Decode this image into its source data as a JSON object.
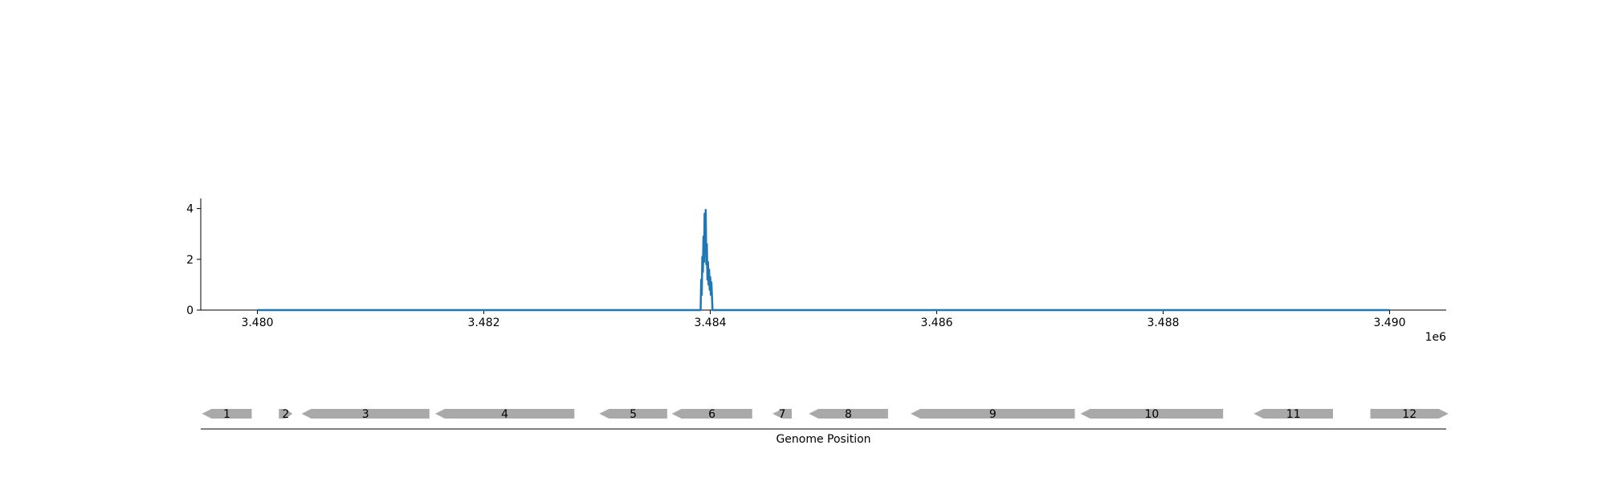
{
  "chart_data": {
    "type": "line",
    "x_scale_label": "1e6",
    "xlim": [
      3.4795,
      3.4905
    ],
    "ylim": [
      0,
      4.4
    ],
    "x_ticks": [
      3.48,
      3.482,
      3.484,
      3.486,
      3.488,
      3.49
    ],
    "x_tick_labels": [
      "3.480",
      "3.482",
      "3.484",
      "3.486",
      "3.488",
      "3.490"
    ],
    "y_ticks": [
      0,
      2,
      4
    ],
    "y_tick_labels": [
      "0",
      "2",
      "4"
    ],
    "grid": false,
    "series": [
      {
        "color": "#1f77b4",
        "x": [
          3.48,
          3.4839,
          3.483915,
          3.48392,
          3.483925,
          3.48393,
          3.483935,
          3.48394,
          3.483945,
          3.48395,
          3.483955,
          3.48396,
          3.483965,
          3.48397,
          3.483975,
          3.48398,
          3.483985,
          3.48399,
          3.483995,
          3.484,
          3.484005,
          3.48401,
          3.48402,
          3.49
        ],
        "y": [
          0,
          0,
          0,
          1.2,
          0.6,
          2.1,
          1.5,
          2.9,
          1.9,
          3.8,
          2.4,
          3.95,
          1.8,
          2.6,
          1.2,
          1.9,
          1.0,
          1.6,
          0.8,
          1.3,
          0.6,
          1.1,
          0,
          0
        ]
      }
    ],
    "genes": {
      "xlabel": "Genome Position",
      "features": [
        {
          "label": "1",
          "start": 3.47951,
          "end": 3.47995,
          "strand": "-"
        },
        {
          "label": "2",
          "start": 3.48019,
          "end": 3.48031,
          "strand": "+"
        },
        {
          "label": "3",
          "start": 3.48039,
          "end": 3.48152,
          "strand": "-"
        },
        {
          "label": "4",
          "start": 3.48157,
          "end": 3.4828,
          "strand": "-"
        },
        {
          "label": "5",
          "start": 3.48302,
          "end": 3.48362,
          "strand": "-"
        },
        {
          "label": "6",
          "start": 3.48366,
          "end": 3.48437,
          "strand": "-"
        },
        {
          "label": "7",
          "start": 3.48455,
          "end": 3.48472,
          "strand": "-"
        },
        {
          "label": "8",
          "start": 3.48487,
          "end": 3.48557,
          "strand": "-"
        },
        {
          "label": "9",
          "start": 3.48577,
          "end": 3.48722,
          "strand": "-"
        },
        {
          "label": "10",
          "start": 3.48727,
          "end": 3.48853,
          "strand": "-"
        },
        {
          "label": "11",
          "start": 3.4888,
          "end": 3.4895,
          "strand": "-"
        },
        {
          "label": "12",
          "start": 3.48983,
          "end": 3.49052,
          "strand": "+"
        }
      ]
    }
  }
}
